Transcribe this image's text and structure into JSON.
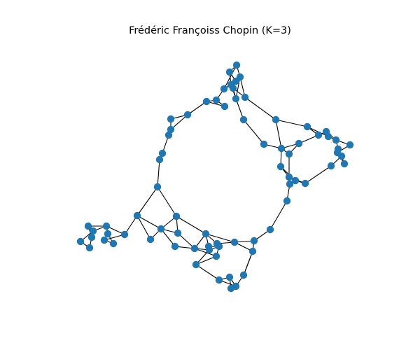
{
  "title": "Frédéric Françoiss Chopin (K=3)",
  "colors": {
    "node": "#1f77b4",
    "edge": "#000000",
    "background": "#ffffff"
  },
  "chart_data": {
    "type": "network",
    "title": "Frédéric Françoiss Chopin (K=3)",
    "node_count": 80,
    "edge_count": 118,
    "node_color": "#1f77b4",
    "edge_color": "#000000"
  }
}
